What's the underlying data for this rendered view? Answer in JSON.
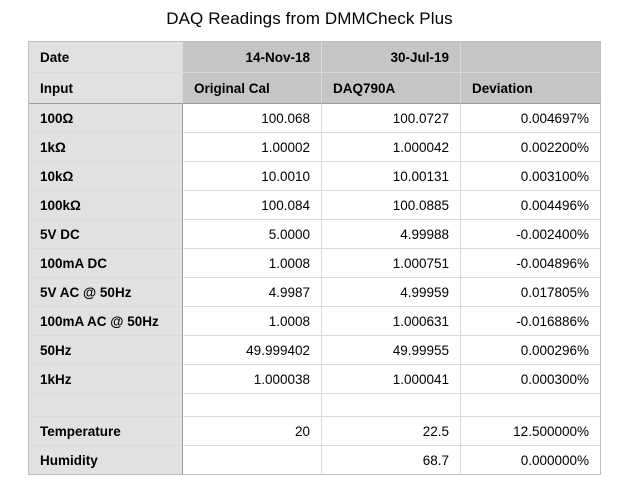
{
  "title": "DAQ Readings from DMMCheck Plus",
  "colors": {
    "header_bg": "#c5c5c5",
    "label_column_bg": "#e1e1e1",
    "cell_bg": "#ffffff",
    "grid_light": "#d9d9d9",
    "grid_dark": "#9c9c9c",
    "outer_border": "#bfbfbf",
    "text": "#000000"
  },
  "table": {
    "hdr1": [
      "Date",
      "14-Nov-18",
      "30-Jul-19",
      ""
    ],
    "hdr2": [
      "Input",
      "Original Cal",
      "DAQ790A",
      "Deviation"
    ],
    "rows": [
      {
        "input": "100Ω",
        "original_cal": "100.068",
        "daq790a": "100.0727",
        "deviation": "0.004697%"
      },
      {
        "input": "1kΩ",
        "original_cal": "1.00002",
        "daq790a": "1.000042",
        "deviation": "0.002200%"
      },
      {
        "input": "10kΩ",
        "original_cal": "10.0010",
        "daq790a": "10.00131",
        "deviation": "0.003100%"
      },
      {
        "input": "100kΩ",
        "original_cal": "100.084",
        "daq790a": "100.0885",
        "deviation": "0.004496%"
      },
      {
        "input": "5V DC",
        "original_cal": "5.0000",
        "daq790a": "4.99988",
        "deviation": "-0.002400%"
      },
      {
        "input": "100mA DC",
        "original_cal": "1.0008",
        "daq790a": "1.000751",
        "deviation": "-0.004896%"
      },
      {
        "input": "5V AC @ 50Hz",
        "original_cal": "4.9987",
        "daq790a": "4.99959",
        "deviation": "0.017805%"
      },
      {
        "input": "100mA AC @ 50Hz",
        "original_cal": "1.0008",
        "daq790a": "1.000631",
        "deviation": "-0.016886%"
      },
      {
        "input": "50Hz",
        "original_cal": "49.999402",
        "daq790a": "49.99955",
        "deviation": "0.000296%"
      },
      {
        "input": "1kHz",
        "original_cal": "1.000038",
        "daq790a": "1.000041",
        "deviation": "0.000300%"
      },
      {
        "input": "",
        "original_cal": "",
        "daq790a": "",
        "deviation": ""
      },
      {
        "input": "Temperature",
        "original_cal": "20",
        "daq790a": "22.5",
        "deviation": "12.500000%"
      },
      {
        "input": "Humidity",
        "original_cal": "",
        "daq790a": "68.7",
        "deviation": "0.000000%"
      }
    ]
  }
}
